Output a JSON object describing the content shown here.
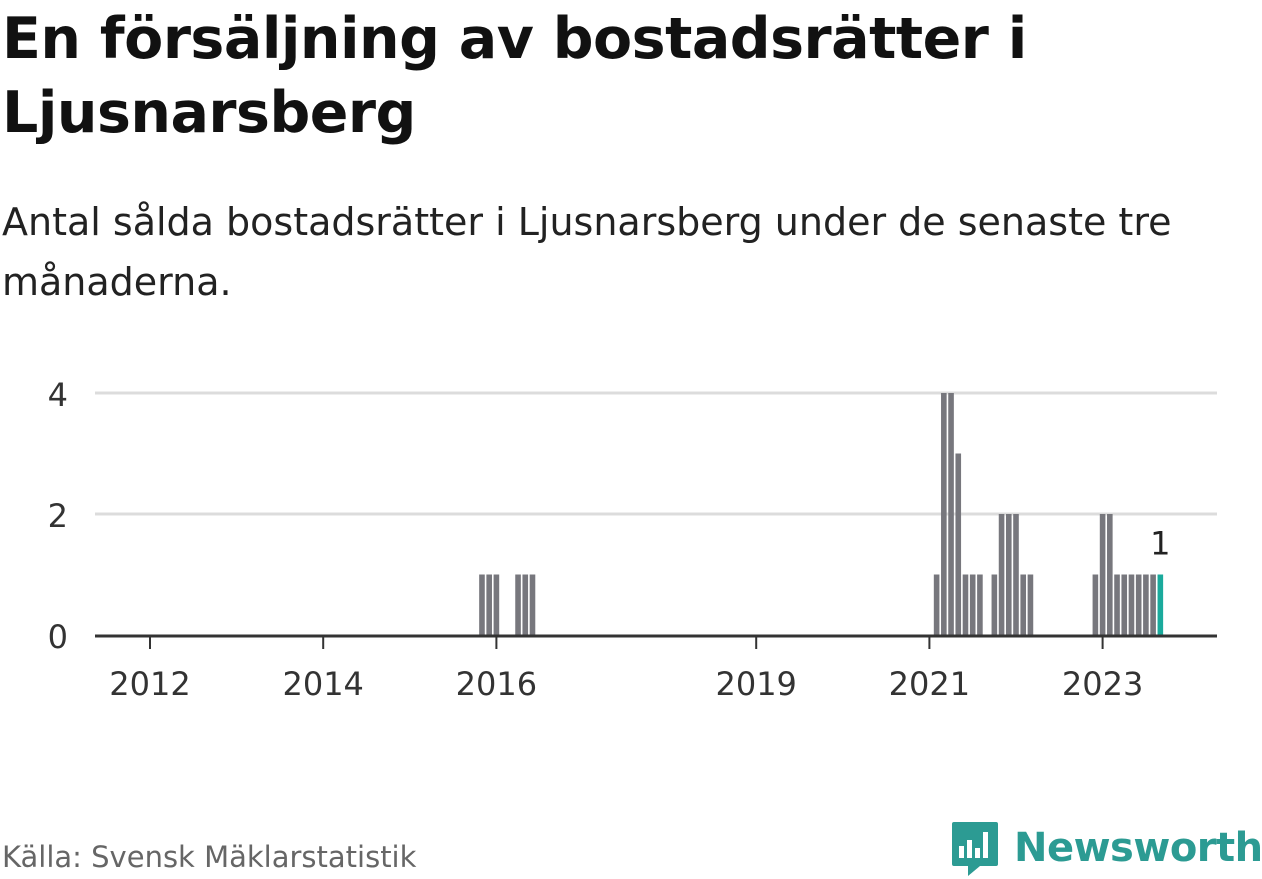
{
  "title": "En försäljning av bostadsrätter i Ljusnarsberg",
  "subtitle": "Antal sålda bostadsrätter i Ljusnarsberg under de senaste tre månaderna.",
  "source": "Källa: Svensk Mäklarstatistik",
  "brand": {
    "name": "Newsworthy",
    "icon": "bar-chart-speech-bubble-icon"
  },
  "colors": {
    "bar": "#77777d",
    "highlight": "#1aaa9c",
    "grid": "#dcdcdc",
    "axis": "#333333",
    "brand": "#2c9b93"
  },
  "chart_data": {
    "type": "bar",
    "title": "En försäljning av bostadsrätter i Ljusnarsberg",
    "xlabel": "",
    "ylabel": "",
    "ylim": [
      0,
      4
    ],
    "yticks": [
      0,
      2,
      4
    ],
    "xticks": [
      "2012",
      "2014",
      "2016",
      "2019",
      "2021",
      "2023"
    ],
    "categories": [
      "2015-11",
      "2015-12",
      "2016-01",
      "2016-04",
      "2016-05",
      "2016-06",
      "2021-02",
      "2021-03",
      "2021-04",
      "2021-05",
      "2021-06",
      "2021-07",
      "2021-08",
      "2021-10",
      "2021-11",
      "2021-12",
      "2022-01",
      "2022-02",
      "2022-03",
      "2022-12",
      "2023-01",
      "2023-02",
      "2023-03",
      "2023-04",
      "2023-05",
      "2023-06",
      "2023-07",
      "2023-08",
      "2023-09"
    ],
    "values": [
      1,
      1,
      1,
      1,
      1,
      1,
      1,
      4,
      4,
      3,
      1,
      1,
      1,
      1,
      2,
      2,
      2,
      1,
      1,
      1,
      2,
      2,
      1,
      1,
      1,
      1,
      1,
      1,
      1
    ],
    "highlight": {
      "category": "2023-09",
      "value": 1,
      "label": "1"
    }
  }
}
